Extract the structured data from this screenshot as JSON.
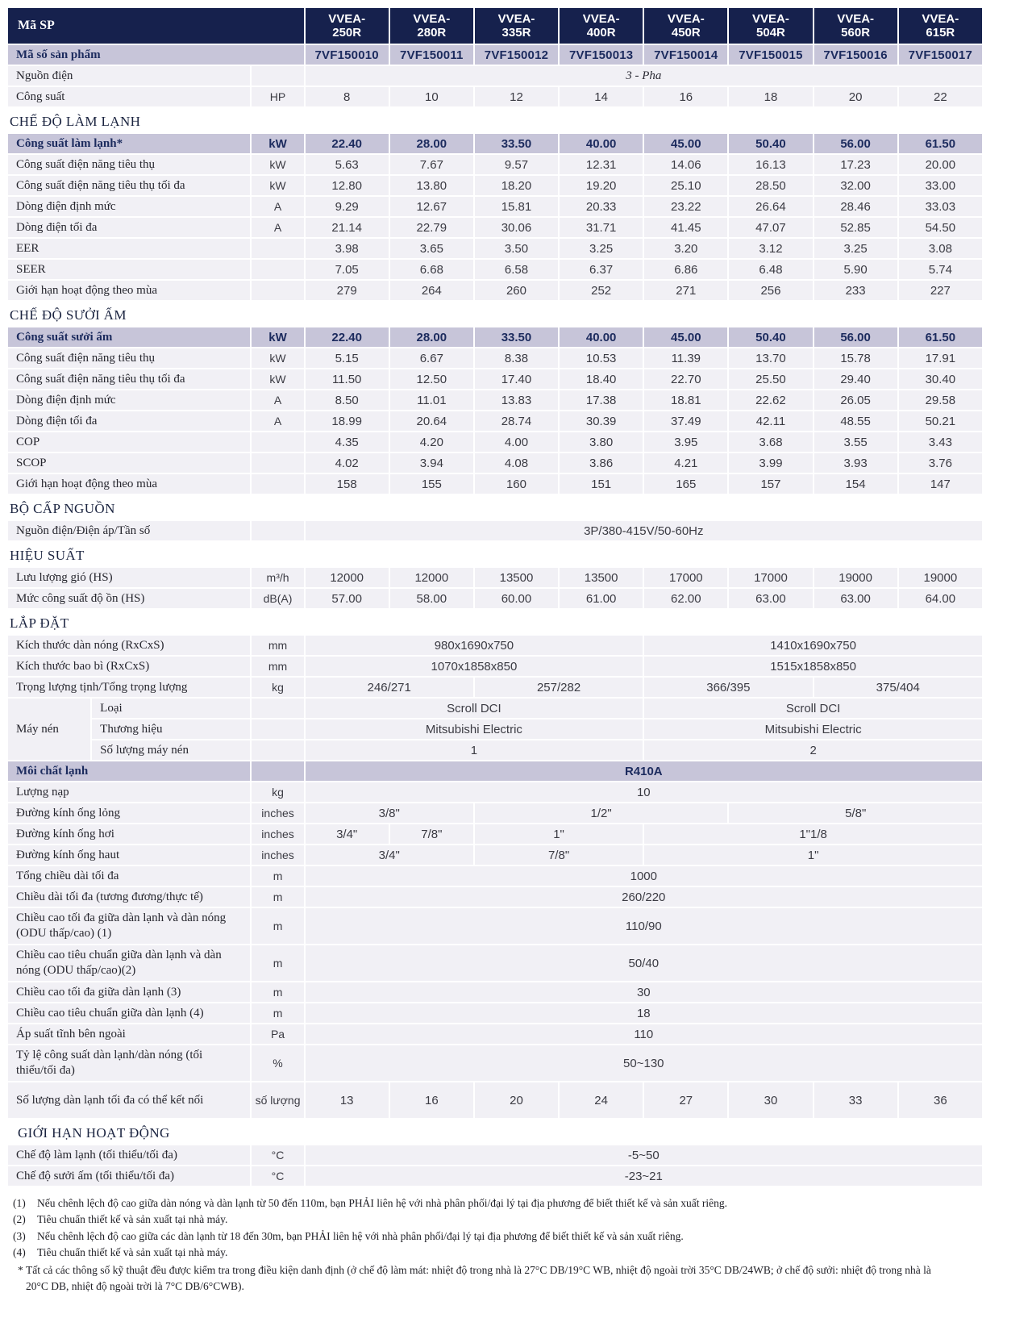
{
  "colors": {
    "header_bg": "#16214d",
    "header_text": "#ffffff",
    "highlight_bg": "#c7c5d9",
    "row_bg": "#f1f0f5",
    "navy_text": "#1c2b5e"
  },
  "header": {
    "product_code_label": "Mã SP",
    "models": [
      {
        "top": "VVEA-",
        "bottom": "250R"
      },
      {
        "top": "VVEA-",
        "bottom": "280R"
      },
      {
        "top": "VVEA-",
        "bottom": "335R"
      },
      {
        "top": "VVEA-",
        "bottom": "400R"
      },
      {
        "top": "VVEA-",
        "bottom": "450R"
      },
      {
        "top": "VVEA-",
        "bottom": "504R"
      },
      {
        "top": "VVEA-",
        "bottom": "560R"
      },
      {
        "top": "VVEA-",
        "bottom": "615R"
      }
    ]
  },
  "rows": [
    {
      "kind": "spec",
      "cls": "codes",
      "merge_label_unit": true,
      "label": "Mã số sản phẩm",
      "cells": [
        "7VF150010",
        "7VF150011",
        "7VF150012",
        "7VF150013",
        "7VF150014",
        "7VF150015",
        "7VF150016",
        "7VF150017"
      ]
    },
    {
      "kind": "spec",
      "label": "Nguồn điện",
      "unit": "",
      "cells": [
        {
          "v": "3 - Pha",
          "span": 8,
          "italic": true
        }
      ]
    },
    {
      "kind": "spec",
      "label": "Công suất",
      "unit": "HP",
      "cells": [
        "8",
        "10",
        "12",
        "14",
        "16",
        "18",
        "20",
        "22"
      ]
    },
    {
      "kind": "section",
      "text": "CHẾ ĐỘ LÀM LẠNH"
    },
    {
      "kind": "spec",
      "highlight": true,
      "label": "Công suất làm lạnh*",
      "unit": "kW",
      "cells": [
        "22.40",
        "28.00",
        "33.50",
        "40.00",
        "45.00",
        "50.40",
        "56.00",
        "61.50"
      ]
    },
    {
      "kind": "spec",
      "label": "Công suất điện năng tiêu thụ",
      "unit": "kW",
      "cells": [
        "5.63",
        "7.67",
        "9.57",
        "12.31",
        "14.06",
        "16.13",
        "17.23",
        "20.00"
      ]
    },
    {
      "kind": "spec",
      "label": "Công suất điện năng tiêu thụ tối đa",
      "unit": "kW",
      "cells": [
        "12.80",
        "13.80",
        "18.20",
        "19.20",
        "25.10",
        "28.50",
        "32.00",
        "33.00"
      ]
    },
    {
      "kind": "spec",
      "label": "Dòng điện định mức",
      "unit": "A",
      "cells": [
        "9.29",
        "12.67",
        "15.81",
        "20.33",
        "23.22",
        "26.64",
        "28.46",
        "33.03"
      ]
    },
    {
      "kind": "spec",
      "label": "Dòng điện tối đa",
      "unit": "A",
      "cells": [
        "21.14",
        "22.79",
        "30.06",
        "31.71",
        "41.45",
        "47.07",
        "52.85",
        "54.50"
      ]
    },
    {
      "kind": "spec",
      "label": "EER",
      "unit": "",
      "cells": [
        "3.98",
        "3.65",
        "3.50",
        "3.25",
        "3.20",
        "3.12",
        "3.25",
        "3.08"
      ]
    },
    {
      "kind": "spec",
      "label": "SEER",
      "unit": "",
      "cells": [
        "7.05",
        "6.68",
        "6.58",
        "6.37",
        "6.86",
        "6.48",
        "5.90",
        "5.74"
      ]
    },
    {
      "kind": "spec",
      "label": "Giới hạn hoạt động theo mùa",
      "unit": "",
      "cells": [
        "279",
        "264",
        "260",
        "252",
        "271",
        "256",
        "233",
        "227"
      ]
    },
    {
      "kind": "section",
      "text": "CHẾ ĐỘ SƯỞI ẤM"
    },
    {
      "kind": "spec",
      "highlight": true,
      "label": "Công suất sưởi ấm",
      "unit": "kW",
      "cells": [
        "22.40",
        "28.00",
        "33.50",
        "40.00",
        "45.00",
        "50.40",
        "56.00",
        "61.50"
      ]
    },
    {
      "kind": "spec",
      "label": "Công suất điện năng tiêu thụ",
      "unit": "kW",
      "cells": [
        "5.15",
        "6.67",
        "8.38",
        "10.53",
        "11.39",
        "13.70",
        "15.78",
        "17.91"
      ]
    },
    {
      "kind": "spec",
      "label": "Công suất điện năng tiêu thụ tối đa",
      "unit": "kW",
      "cells": [
        "11.50",
        "12.50",
        "17.40",
        "18.40",
        "22.70",
        "25.50",
        "29.40",
        "30.40"
      ]
    },
    {
      "kind": "spec",
      "label": "Dòng điện định mức",
      "unit": "A",
      "cells": [
        "8.50",
        "11.01",
        "13.83",
        "17.38",
        "18.81",
        "22.62",
        "26.05",
        "29.58"
      ]
    },
    {
      "kind": "spec",
      "label": "Dòng điện tối đa",
      "unit": "A",
      "cells": [
        "18.99",
        "20.64",
        "28.74",
        "30.39",
        "37.49",
        "42.11",
        "48.55",
        "50.21"
      ]
    },
    {
      "kind": "spec",
      "label": "COP",
      "unit": "",
      "cells": [
        "4.35",
        "4.20",
        "4.00",
        "3.80",
        "3.95",
        "3.68",
        "3.55",
        "3.43"
      ]
    },
    {
      "kind": "spec",
      "label": "SCOP",
      "unit": "",
      "cells": [
        "4.02",
        "3.94",
        "4.08",
        "3.86",
        "4.21",
        "3.99",
        "3.93",
        "3.76"
      ]
    },
    {
      "kind": "spec",
      "label": "Giới hạn hoạt động theo mùa",
      "unit": "",
      "cells": [
        "158",
        "155",
        "160",
        "151",
        "165",
        "157",
        "154",
        "147"
      ]
    },
    {
      "kind": "section",
      "text": "BỘ CẤP NGUỒN"
    },
    {
      "kind": "spec",
      "label": "Nguồn điện/Điện áp/Tần số",
      "unit": "",
      "cells": [
        {
          "v": "3P/380-415V/50-60Hz",
          "span": 8
        }
      ]
    },
    {
      "kind": "section",
      "text": "HIỆU SUẤT"
    },
    {
      "kind": "spec",
      "label": "Lưu lượng gió (HS)",
      "unit": "m³/h",
      "cells": [
        "12000",
        "12000",
        "13500",
        "13500",
        "17000",
        "17000",
        "19000",
        "19000"
      ]
    },
    {
      "kind": "spec",
      "label": "Mức công suất độ ồn (HS)",
      "unit": "dB(A)",
      "cells": [
        "57.00",
        "58.00",
        "60.00",
        "61.00",
        "62.00",
        "63.00",
        "63.00",
        "64.00"
      ]
    },
    {
      "kind": "section",
      "text": "LẮP ĐẶT"
    },
    {
      "kind": "spec",
      "label": "Kích thước dàn nóng (RxCxS)",
      "unit": "mm",
      "cells": [
        {
          "v": "980x1690x750",
          "span": 4
        },
        {
          "v": "1410x1690x750",
          "span": 4
        }
      ]
    },
    {
      "kind": "spec",
      "label": "Kích thước bao bì (RxCxS)",
      "unit": "mm",
      "cells": [
        {
          "v": "1070x1858x850",
          "span": 4
        },
        {
          "v": "1515x1858x850",
          "span": 4
        }
      ]
    },
    {
      "kind": "spec",
      "label": "Trọng lượng tịnh/Tổng trọng lượng",
      "unit": "kg",
      "cells": [
        {
          "v": "246/271",
          "span": 2
        },
        {
          "v": "257/282",
          "span": 2
        },
        {
          "v": "366/395",
          "span": 2
        },
        {
          "v": "375/404",
          "span": 2
        }
      ]
    },
    {
      "kind": "spec",
      "group": {
        "label": "Máy nén",
        "span": 3
      },
      "label": "Loại",
      "unit": "",
      "cells": [
        {
          "v": "Scroll DCI",
          "span": 4
        },
        {
          "v": "Scroll DCI",
          "span": 4
        }
      ]
    },
    {
      "kind": "spec",
      "ingroup": true,
      "label": "Thương hiệu",
      "unit": "",
      "cells": [
        {
          "v": "Mitsubishi Electric",
          "span": 4
        },
        {
          "v": "Mitsubishi Electric",
          "span": 4
        }
      ]
    },
    {
      "kind": "spec",
      "ingroup": true,
      "label": "Số lượng máy nén",
      "unit": "",
      "cells": [
        {
          "v": "1",
          "span": 4
        },
        {
          "v": "2",
          "span": 4
        }
      ]
    },
    {
      "kind": "spec",
      "highlight": true,
      "label": "Môi chất lạnh",
      "unit": "",
      "cells": [
        {
          "v": "R410A",
          "span": 8
        }
      ]
    },
    {
      "kind": "spec",
      "label": "Lượng nạp",
      "unit": "kg",
      "cells": [
        {
          "v": "10",
          "span": 8
        }
      ]
    },
    {
      "kind": "spec",
      "label": "Đường kính ống lỏng",
      "unit": "inches",
      "cells": [
        {
          "v": "3/8\"",
          "span": 2
        },
        {
          "v": "1/2\"",
          "span": 3
        },
        {
          "v": "5/8\"",
          "span": 3
        }
      ]
    },
    {
      "kind": "spec",
      "label": "Đường kính ống hơi",
      "unit": "inches",
      "cells": [
        {
          "v": "3/4\"",
          "span": 1
        },
        {
          "v": "7/8\"",
          "span": 1
        },
        {
          "v": "1\"",
          "span": 2
        },
        {
          "v": "1\"1/8",
          "span": 4
        }
      ]
    },
    {
      "kind": "spec",
      "label": "Đường kính ống haut",
      "unit": "inches",
      "cells": [
        {
          "v": "3/4\"",
          "span": 2
        },
        {
          "v": "7/8\"",
          "span": 2
        },
        {
          "v": "1\"",
          "span": 4
        }
      ]
    },
    {
      "kind": "spec",
      "label": "Tổng chiều dài tối đa",
      "unit": "m",
      "cells": [
        {
          "v": "1000",
          "span": 8
        }
      ]
    },
    {
      "kind": "spec",
      "label": "Chiều dài tối đa (tương đương/thực tế)",
      "unit": "m",
      "cells": [
        {
          "v": "260/220",
          "span": 8
        }
      ]
    },
    {
      "kind": "spec",
      "tall": true,
      "label": "Chiều cao tối đa giữa dàn lạnh và dàn nóng (ODU thấp/cao) (1)",
      "unit": "m",
      "cells": [
        {
          "v": "110/90",
          "span": 8
        }
      ]
    },
    {
      "kind": "spec",
      "tall": true,
      "label": "Chiều cao tiêu chuẩn giữa dàn lạnh và dàn nóng (ODU thấp/cao)(2)",
      "unit": "m",
      "cells": [
        {
          "v": "50/40",
          "span": 8
        }
      ]
    },
    {
      "kind": "spec",
      "label": "Chiều cao tối đa giữa dàn lạnh (3)",
      "unit": "m",
      "cells": [
        {
          "v": "30",
          "span": 8
        }
      ]
    },
    {
      "kind": "spec",
      "label": "Chiều cao tiêu chuẩn giữa dàn lạnh (4)",
      "unit": "m",
      "cells": [
        {
          "v": "18",
          "span": 8
        }
      ]
    },
    {
      "kind": "spec",
      "label": "Áp suất tĩnh bên ngoài",
      "unit": "Pa",
      "cells": [
        {
          "v": "110",
          "span": 8
        }
      ]
    },
    {
      "kind": "spec",
      "tall": true,
      "label": "Tỷ lệ công suất dàn lạnh/dàn nóng  (tối thiểu/tối đa)",
      "unit": "%",
      "cells": [
        {
          "v": "50~130",
          "span": 8
        }
      ]
    },
    {
      "kind": "spec",
      "tall": true,
      "label": "Số lượng dàn lạnh tối đa có thể kết nối",
      "unit": "số lượng",
      "cells": [
        "13",
        "16",
        "20",
        "24",
        "27",
        "30",
        "33",
        "36"
      ]
    },
    {
      "kind": "section",
      "indent": true,
      "text": "GIỚI HẠN HOẠT ĐỘNG"
    },
    {
      "kind": "spec",
      "label": "Chế độ làm lạnh (tối thiểu/tối đa)",
      "unit": "°C",
      "cells": [
        {
          "v": "-5~50",
          "span": 8
        }
      ]
    },
    {
      "kind": "spec",
      "label": "Chế độ sưởi ấm (tối thiểu/tối đa)",
      "unit": "°C",
      "cells": [
        {
          "v": "-23~21",
          "span": 8
        }
      ]
    }
  ],
  "footnotes": [
    {
      "marker": "(1)",
      "text": "Nếu chênh lệch độ cao giữa dàn nóng và dàn lạnh từ 50 đến 110m, bạn PHẢI liên hệ với nhà phân phối/đại lý tại địa phương để biết thiết kế và sản xuất riêng."
    },
    {
      "marker": "(2)",
      "text": "Tiêu chuẩn thiết kế và sản xuất tại nhà máy."
    },
    {
      "marker": "(3)",
      "text": "Nếu chênh lệch độ cao giữa các dàn lạnh từ 18 đến 30m, bạn PHẢI liên hệ với nhà phân phối/đại lý tại địa phương để biết thiết kế và sản xuất riêng."
    },
    {
      "marker": "(4)",
      "text": "Tiêu chuẩn thiết kế và sản xuất tại nhà máy."
    },
    {
      "marker": "*",
      "text": "Tất cả các thông số kỹ thuật đều được kiểm tra trong điều kiện danh định (ở chế độ làm mát: nhiệt độ trong nhà là 27°C DB/19°C WB, nhiệt độ ngoài trời 35°C DB/24WB; ở chế độ sưởi: nhiệt độ trong nhà là 20°C DB, nhiệt độ ngoài trời là 7°C DB/6°CWB)."
    }
  ]
}
